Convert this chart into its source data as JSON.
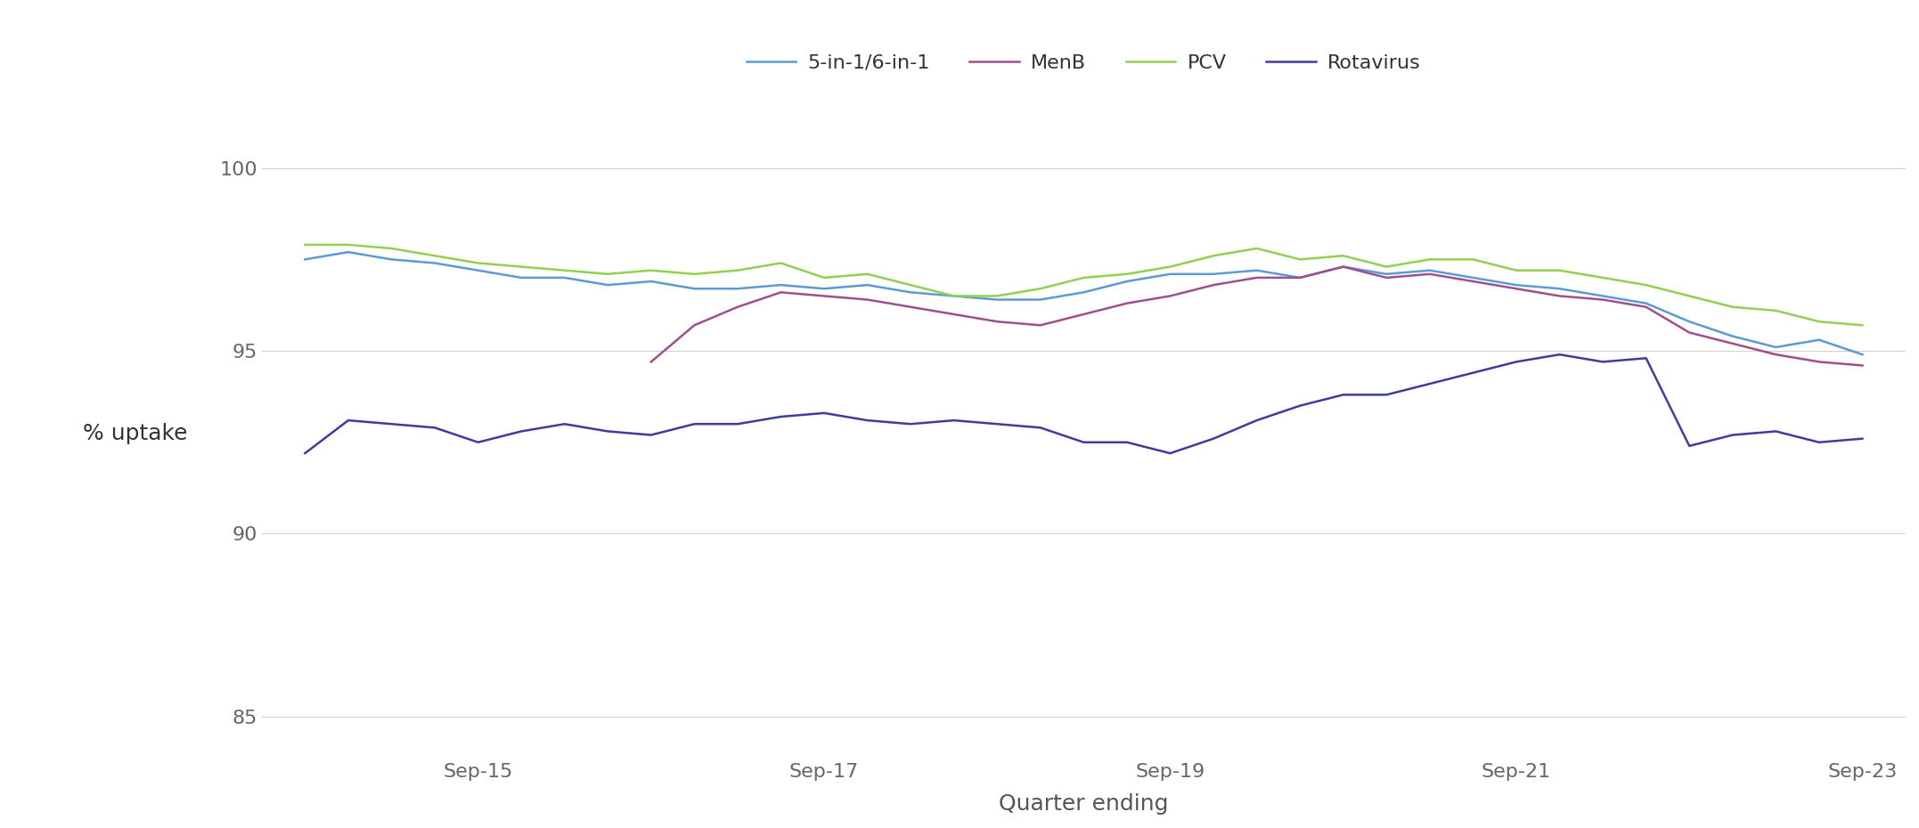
{
  "title": "",
  "xlabel": "Quarter ending",
  "ylabel": "% uptake",
  "ylim": [
    84,
    101.5
  ],
  "yticks": [
    85,
    90,
    95,
    100
  ],
  "xtick_positions": [
    5,
    13,
    21,
    29,
    37
  ],
  "xtick_labels": [
    "Sep-15",
    "Sep-17",
    "Sep-19",
    "Sep-21",
    "Sep-23"
  ],
  "n_points": 37,
  "background_color": "#ffffff",
  "grid_color": "#d0d0d0",
  "legend_labels": [
    "5-in-1/6-in-1",
    "MenB",
    "PCV",
    "Rotavirus"
  ],
  "legend_colors": [
    "#5B9BD5",
    "#9E4F8C",
    "#92D050",
    "#3D3D9E"
  ],
  "series": {
    "five_in_one": [
      97.5,
      97.7,
      97.5,
      97.4,
      97.2,
      97.0,
      97.0,
      96.8,
      96.9,
      96.7,
      96.7,
      96.8,
      96.7,
      96.8,
      96.6,
      96.5,
      96.4,
      96.4,
      96.6,
      96.9,
      97.1,
      97.1,
      97.2,
      97.0,
      97.3,
      97.1,
      97.2,
      97.0,
      96.8,
      96.7,
      96.5,
      96.3,
      95.8,
      95.4,
      95.1,
      95.3,
      94.9
    ],
    "menb": [
      null,
      null,
      null,
      null,
      null,
      null,
      null,
      null,
      94.7,
      95.7,
      96.2,
      96.6,
      96.5,
      96.4,
      96.2,
      96.0,
      95.8,
      95.7,
      96.0,
      96.3,
      96.5,
      96.8,
      97.0,
      97.0,
      97.3,
      97.0,
      97.1,
      96.9,
      96.7,
      96.5,
      96.4,
      96.2,
      95.5,
      95.2,
      94.9,
      94.7,
      94.6
    ],
    "pcv": [
      97.9,
      97.9,
      97.8,
      97.6,
      97.4,
      97.3,
      97.2,
      97.1,
      97.2,
      97.1,
      97.2,
      97.4,
      97.0,
      97.1,
      96.8,
      96.5,
      96.5,
      96.7,
      97.0,
      97.1,
      97.3,
      97.6,
      97.8,
      97.5,
      97.6,
      97.3,
      97.5,
      97.5,
      97.2,
      97.2,
      97.0,
      96.8,
      96.5,
      96.2,
      96.1,
      95.8,
      95.7
    ],
    "rotavirus": [
      92.2,
      93.1,
      93.0,
      92.9,
      92.5,
      92.8,
      93.0,
      92.8,
      92.7,
      93.0,
      93.0,
      93.2,
      93.3,
      93.1,
      93.0,
      93.1,
      93.0,
      92.9,
      92.5,
      92.5,
      92.2,
      92.6,
      93.1,
      93.5,
      93.8,
      93.8,
      94.1,
      94.4,
      94.7,
      94.9,
      94.7,
      94.8,
      92.4,
      92.7,
      92.8,
      92.5,
      92.6
    ]
  },
  "line_width": 1.8
}
